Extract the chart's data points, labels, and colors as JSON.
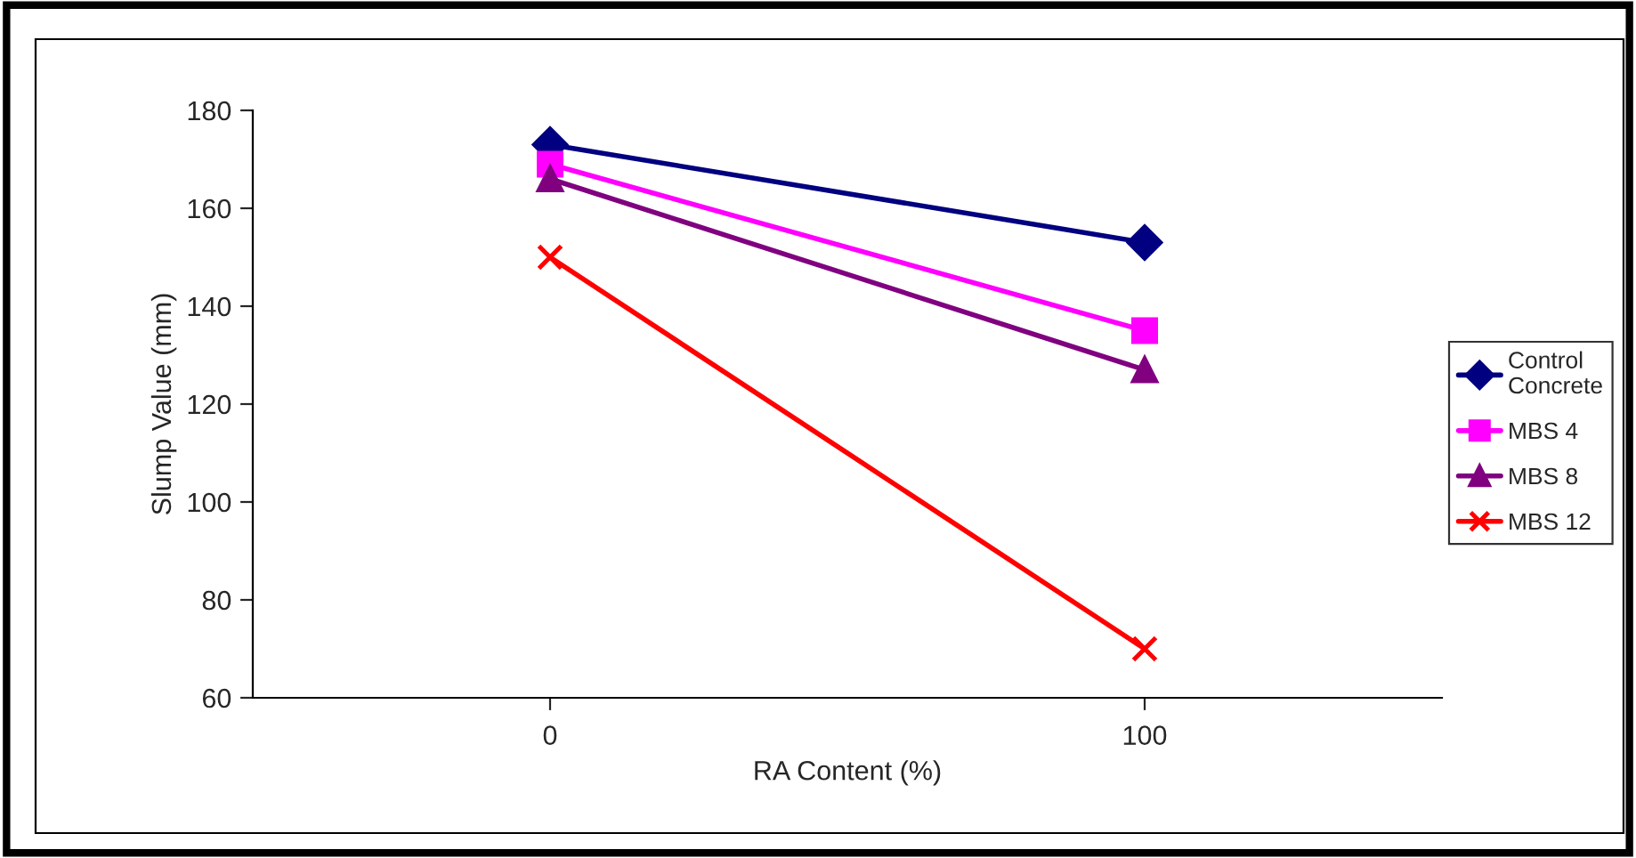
{
  "chart_data": {
    "type": "line",
    "xlabel": "RA Content (%)",
    "ylabel": "Slump Value (mm)",
    "categories": [
      "0",
      "100"
    ],
    "series": [
      {
        "name": "Control Concrete",
        "color": "#000080",
        "marker": "diamond",
        "values": [
          173,
          153
        ]
      },
      {
        "name": "MBS 4",
        "color": "#ff00ff",
        "marker": "square",
        "values": [
          169,
          135
        ]
      },
      {
        "name": "MBS 8",
        "color": "#800080",
        "marker": "triangle",
        "values": [
          166,
          127
        ]
      },
      {
        "name": "MBS 12",
        "color": "#ff0000",
        "marker": "cross",
        "values": [
          150,
          70
        ]
      }
    ],
    "ylim": [
      60,
      180
    ],
    "yticks": [
      60,
      80,
      100,
      120,
      140,
      160,
      180
    ],
    "grid": false,
    "legend": "right",
    "line_style": "solid"
  }
}
